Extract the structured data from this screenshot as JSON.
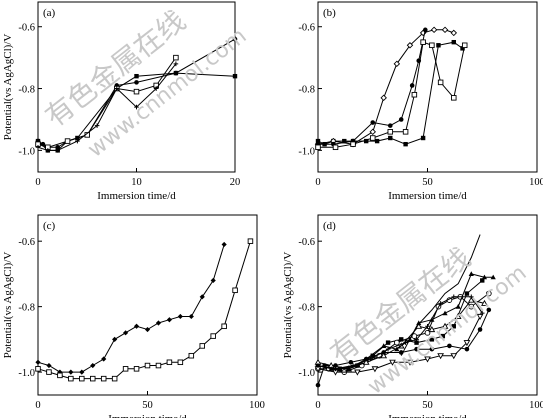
{
  "watermark": {
    "cn_text": "有色金属在线",
    "url_text": "www.cnnmol.com"
  },
  "chart_data": [
    {
      "type": "line",
      "panel_label": "(a)",
      "xlabel": "Immersion time/d",
      "ylabel": "Potential(vs AgAgCl)/V",
      "xlim": [
        0,
        20
      ],
      "ylim": [
        -1.07,
        -0.52
      ],
      "xticks": [
        0,
        10,
        20
      ],
      "yticks": [
        -1.0,
        -0.8,
        -0.6
      ],
      "tick_labels": {
        "x": [
          "0",
          "10",
          "20"
        ],
        "y": [
          "-1.0",
          "-0.8",
          "-0.6"
        ]
      },
      "series": [
        {
          "marker": "filled-circle",
          "points": [
            [
              0,
              -0.97
            ],
            [
              0.5,
              -0.98
            ],
            [
              1,
              -0.99
            ],
            [
              2,
              -0.99
            ],
            [
              3,
              -0.97
            ],
            [
              5,
              -0.95
            ],
            [
              8,
              -0.79
            ],
            [
              10,
              -0.78
            ],
            [
              14,
              -0.75
            ],
            [
              20,
              -0.64
            ]
          ]
        },
        {
          "marker": "filled-square",
          "points": [
            [
              0,
              -0.97
            ],
            [
              1,
              -1.0
            ],
            [
              2,
              -1.0
            ],
            [
              3,
              -0.97
            ],
            [
              4,
              -0.96
            ],
            [
              8,
              -0.8
            ],
            [
              10,
              -0.76
            ],
            [
              14,
              -0.75
            ],
            [
              20,
              -0.76
            ]
          ]
        },
        {
          "marker": "open-square",
          "points": [
            [
              0,
              -0.98
            ],
            [
              1,
              -0.99
            ],
            [
              3,
              -0.97
            ],
            [
              5,
              -0.95
            ],
            [
              8,
              -0.8
            ],
            [
              10,
              -0.81
            ],
            [
              12,
              -0.79
            ],
            [
              14,
              -0.7
            ]
          ]
        },
        {
          "marker": "cross",
          "points": [
            [
              0,
              -0.99
            ],
            [
              1,
              -1.0
            ],
            [
              2,
              -1.0
            ],
            [
              4,
              -0.97
            ],
            [
              6,
              -0.92
            ],
            [
              8,
              -0.8
            ],
            [
              10,
              -0.86
            ],
            [
              12,
              -0.8
            ],
            [
              14,
              -0.72
            ]
          ]
        }
      ]
    },
    {
      "type": "line",
      "panel_label": "(b)",
      "xlabel": "Immersion time/d",
      "ylabel": "",
      "xlim": [
        0,
        100
      ],
      "ylim": [
        -1.07,
        -0.52
      ],
      "xticks": [
        0,
        50,
        100
      ],
      "yticks": [
        -1.0,
        -0.8,
        -0.6
      ],
      "tick_labels": {
        "x": [
          "0",
          "50",
          "100"
        ],
        "y": [
          "-1.0",
          "-0.8",
          "-0.6"
        ]
      },
      "series": [
        {
          "marker": "filled-square",
          "points": [
            [
              0,
              -0.97
            ],
            [
              3,
              -0.98
            ],
            [
              7,
              -0.97
            ],
            [
              12,
              -0.97
            ],
            [
              16,
              -0.97
            ],
            [
              22,
              -0.97
            ],
            [
              27,
              -0.97
            ],
            [
              33,
              -0.96
            ],
            [
              40,
              -0.98
            ],
            [
              48,
              -0.96
            ],
            [
              55,
              -0.66
            ],
            [
              62,
              -0.65
            ],
            [
              66,
              -0.67
            ]
          ]
        },
        {
          "marker": "open-diamond",
          "points": [
            [
              0,
              -0.98
            ],
            [
              7,
              -0.97
            ],
            [
              16,
              -0.98
            ],
            [
              25,
              -0.94
            ],
            [
              30,
              -0.83
            ],
            [
              36,
              -0.72
            ],
            [
              42,
              -0.66
            ],
            [
              48,
              -0.62
            ],
            [
              53,
              -0.61
            ],
            [
              58,
              -0.61
            ],
            [
              62,
              -0.62
            ]
          ]
        },
        {
          "marker": "filled-circle",
          "points": [
            [
              0,
              -0.98
            ],
            [
              7,
              -0.98
            ],
            [
              16,
              -0.97
            ],
            [
              25,
              -0.91
            ],
            [
              33,
              -0.92
            ],
            [
              38,
              -0.9
            ],
            [
              43,
              -0.79
            ],
            [
              46,
              -0.71
            ],
            [
              49,
              -0.61
            ]
          ]
        },
        {
          "marker": "open-square",
          "points": [
            [
              0,
              -0.99
            ],
            [
              8,
              -0.99
            ],
            [
              16,
              -0.98
            ],
            [
              25,
              -0.96
            ],
            [
              33,
              -0.94
            ],
            [
              40,
              -0.94
            ],
            [
              44,
              -0.82
            ],
            [
              48,
              -0.65
            ],
            [
              52,
              -0.66
            ],
            [
              56,
              -0.78
            ],
            [
              62,
              -0.83
            ],
            [
              67,
              -0.66
            ]
          ]
        }
      ]
    },
    {
      "type": "line",
      "panel_label": "(c)",
      "xlabel": "Immersion time/d",
      "ylabel": "Potential(vs AgAgCl)/V",
      "xlim": [
        0,
        100
      ],
      "ylim": [
        -1.07,
        -0.52
      ],
      "xticks": [
        0,
        50,
        100
      ],
      "yticks": [
        -1.0,
        -0.8,
        -0.6
      ],
      "tick_labels": {
        "x": [
          "0",
          "50",
          "100"
        ],
        "y": [
          "-1.0",
          "-0.8",
          "-0.6"
        ]
      },
      "series": [
        {
          "marker": "filled-diamond",
          "points": [
            [
              0,
              -0.97
            ],
            [
              5,
              -0.98
            ],
            [
              10,
              -1.0
            ],
            [
              15,
              -1.0
            ],
            [
              20,
              -1.0
            ],
            [
              25,
              -0.98
            ],
            [
              30,
              -0.96
            ],
            [
              35,
              -0.9
            ],
            [
              40,
              -0.88
            ],
            [
              45,
              -0.86
            ],
            [
              50,
              -0.87
            ],
            [
              55,
              -0.85
            ],
            [
              60,
              -0.84
            ],
            [
              65,
              -0.83
            ],
            [
              70,
              -0.83
            ],
            [
              75,
              -0.77
            ],
            [
              80,
              -0.72
            ],
            [
              85,
              -0.61
            ]
          ]
        },
        {
          "marker": "open-square",
          "points": [
            [
              0,
              -0.99
            ],
            [
              5,
              -1.0
            ],
            [
              10,
              -1.01
            ],
            [
              15,
              -1.02
            ],
            [
              20,
              -1.02
            ],
            [
              25,
              -1.02
            ],
            [
              30,
              -1.02
            ],
            [
              35,
              -1.02
            ],
            [
              40,
              -0.99
            ],
            [
              45,
              -0.99
            ],
            [
              50,
              -0.98
            ],
            [
              55,
              -0.98
            ],
            [
              60,
              -0.97
            ],
            [
              65,
              -0.97
            ],
            [
              70,
              -0.95
            ],
            [
              75,
              -0.92
            ],
            [
              80,
              -0.89
            ],
            [
              85,
              -0.86
            ],
            [
              90,
              -0.75
            ],
            [
              97,
              -0.6
            ]
          ]
        }
      ]
    },
    {
      "type": "line",
      "panel_label": "(d)",
      "xlabel": "Immersion time/d",
      "ylabel": "Potential(vs AgAgCl)/V",
      "xlim": [
        0,
        100
      ],
      "ylim": [
        -1.07,
        -0.52
      ],
      "xticks": [
        0,
        50,
        100
      ],
      "yticks": [
        -1.0,
        -0.8,
        -0.6
      ],
      "tick_labels": {
        "x": [
          "0",
          "50",
          "100"
        ],
        "y": [
          "-1.0",
          "-0.8",
          "-0.6"
        ]
      },
      "series": [
        {
          "marker": "filled-circle",
          "points": [
            [
              0,
              -1.04
            ],
            [
              3,
              -0.98
            ],
            [
              8,
              -0.98
            ],
            [
              15,
              -0.97
            ],
            [
              22,
              -0.96
            ],
            [
              30,
              -0.94
            ],
            [
              38,
              -0.94
            ],
            [
              45,
              -0.93
            ],
            [
              52,
              -0.93
            ],
            [
              60,
              -0.92
            ],
            [
              68,
              -0.93
            ],
            [
              74,
              -0.87
            ],
            [
              78,
              -0.81
            ]
          ]
        },
        {
          "marker": "filled-square",
          "points": [
            [
              0,
              -0.98
            ],
            [
              5,
              -0.99
            ],
            [
              10,
              -0.99
            ],
            [
              18,
              -0.98
            ],
            [
              25,
              -0.95
            ],
            [
              32,
              -0.91
            ],
            [
              38,
              -0.9
            ],
            [
              45,
              -0.91
            ],
            [
              52,
              -0.9
            ],
            [
              57,
              -0.89
            ],
            [
              62,
              -0.86
            ],
            [
              68,
              -0.76
            ],
            [
              75,
              -0.72
            ]
          ]
        },
        {
          "marker": "open-circle",
          "points": [
            [
              0,
              -0.99
            ],
            [
              5,
              -0.99
            ],
            [
              12,
              -1.0
            ],
            [
              20,
              -0.98
            ],
            [
              28,
              -0.95
            ],
            [
              36,
              -0.91
            ],
            [
              44,
              -0.89
            ],
            [
              50,
              -0.88
            ],
            [
              55,
              -0.8
            ],
            [
              60,
              -0.78
            ],
            [
              65,
              -0.77
            ],
            [
              70,
              -0.8
            ],
            [
              78,
              -0.76
            ]
          ]
        },
        {
          "marker": "open-triangle",
          "points": [
            [
              0,
              -0.97
            ],
            [
              6,
              -0.98
            ],
            [
              14,
              -0.99
            ],
            [
              22,
              -0.97
            ],
            [
              30,
              -0.95
            ],
            [
              38,
              -0.92
            ],
            [
              46,
              -0.86
            ],
            [
              52,
              -0.87
            ],
            [
              58,
              -0.86
            ],
            [
              64,
              -0.83
            ],
            [
              70,
              -0.78
            ],
            [
              76,
              -0.79
            ]
          ]
        },
        {
          "marker": "filled-triangle",
          "points": [
            [
              0,
              -0.98
            ],
            [
              6,
              -0.99
            ],
            [
              14,
              -0.99
            ],
            [
              22,
              -0.96
            ],
            [
              30,
              -0.92
            ],
            [
              36,
              -0.93
            ],
            [
              42,
              -0.9
            ],
            [
              46,
              -0.85
            ],
            [
              52,
              -0.84
            ],
            [
              58,
              -0.82
            ],
            [
              64,
              -0.8
            ],
            [
              70,
              -0.7
            ],
            [
              76,
              -0.71
            ],
            [
              80,
              -0.71
            ]
          ]
        },
        {
          "marker": "open-triangle-down",
          "points": [
            [
              0,
              -0.99
            ],
            [
              8,
              -1.0
            ],
            [
              18,
              -1.0
            ],
            [
              26,
              -0.99
            ],
            [
              34,
              -0.97
            ],
            [
              42,
              -0.97
            ],
            [
              50,
              -0.96
            ],
            [
              56,
              -0.95
            ],
            [
              62,
              -0.95
            ],
            [
              68,
              -0.91
            ],
            [
              74,
              -0.83
            ]
          ]
        },
        {
          "marker": "cross",
          "points": [
            [
              0,
              -0.98
            ],
            [
              8,
              -0.99
            ],
            [
              16,
              -0.98
            ],
            [
              24,
              -0.96
            ],
            [
              32,
              -0.93
            ],
            [
              40,
              -0.91
            ],
            [
              45,
              -0.9
            ],
            [
              50,
              -0.86
            ],
            [
              56,
              -0.79
            ],
            [
              62,
              -0.77
            ],
            [
              70,
              -0.77
            ],
            [
              75,
              -0.82
            ]
          ]
        },
        {
          "marker": "line",
          "points": [
            [
              38,
              -0.95
            ],
            [
              45,
              -0.86
            ],
            [
              52,
              -0.81
            ],
            [
              58,
              -0.76
            ],
            [
              64,
              -0.73
            ],
            [
              70,
              -0.65
            ],
            [
              74,
              -0.58
            ]
          ]
        }
      ]
    }
  ]
}
